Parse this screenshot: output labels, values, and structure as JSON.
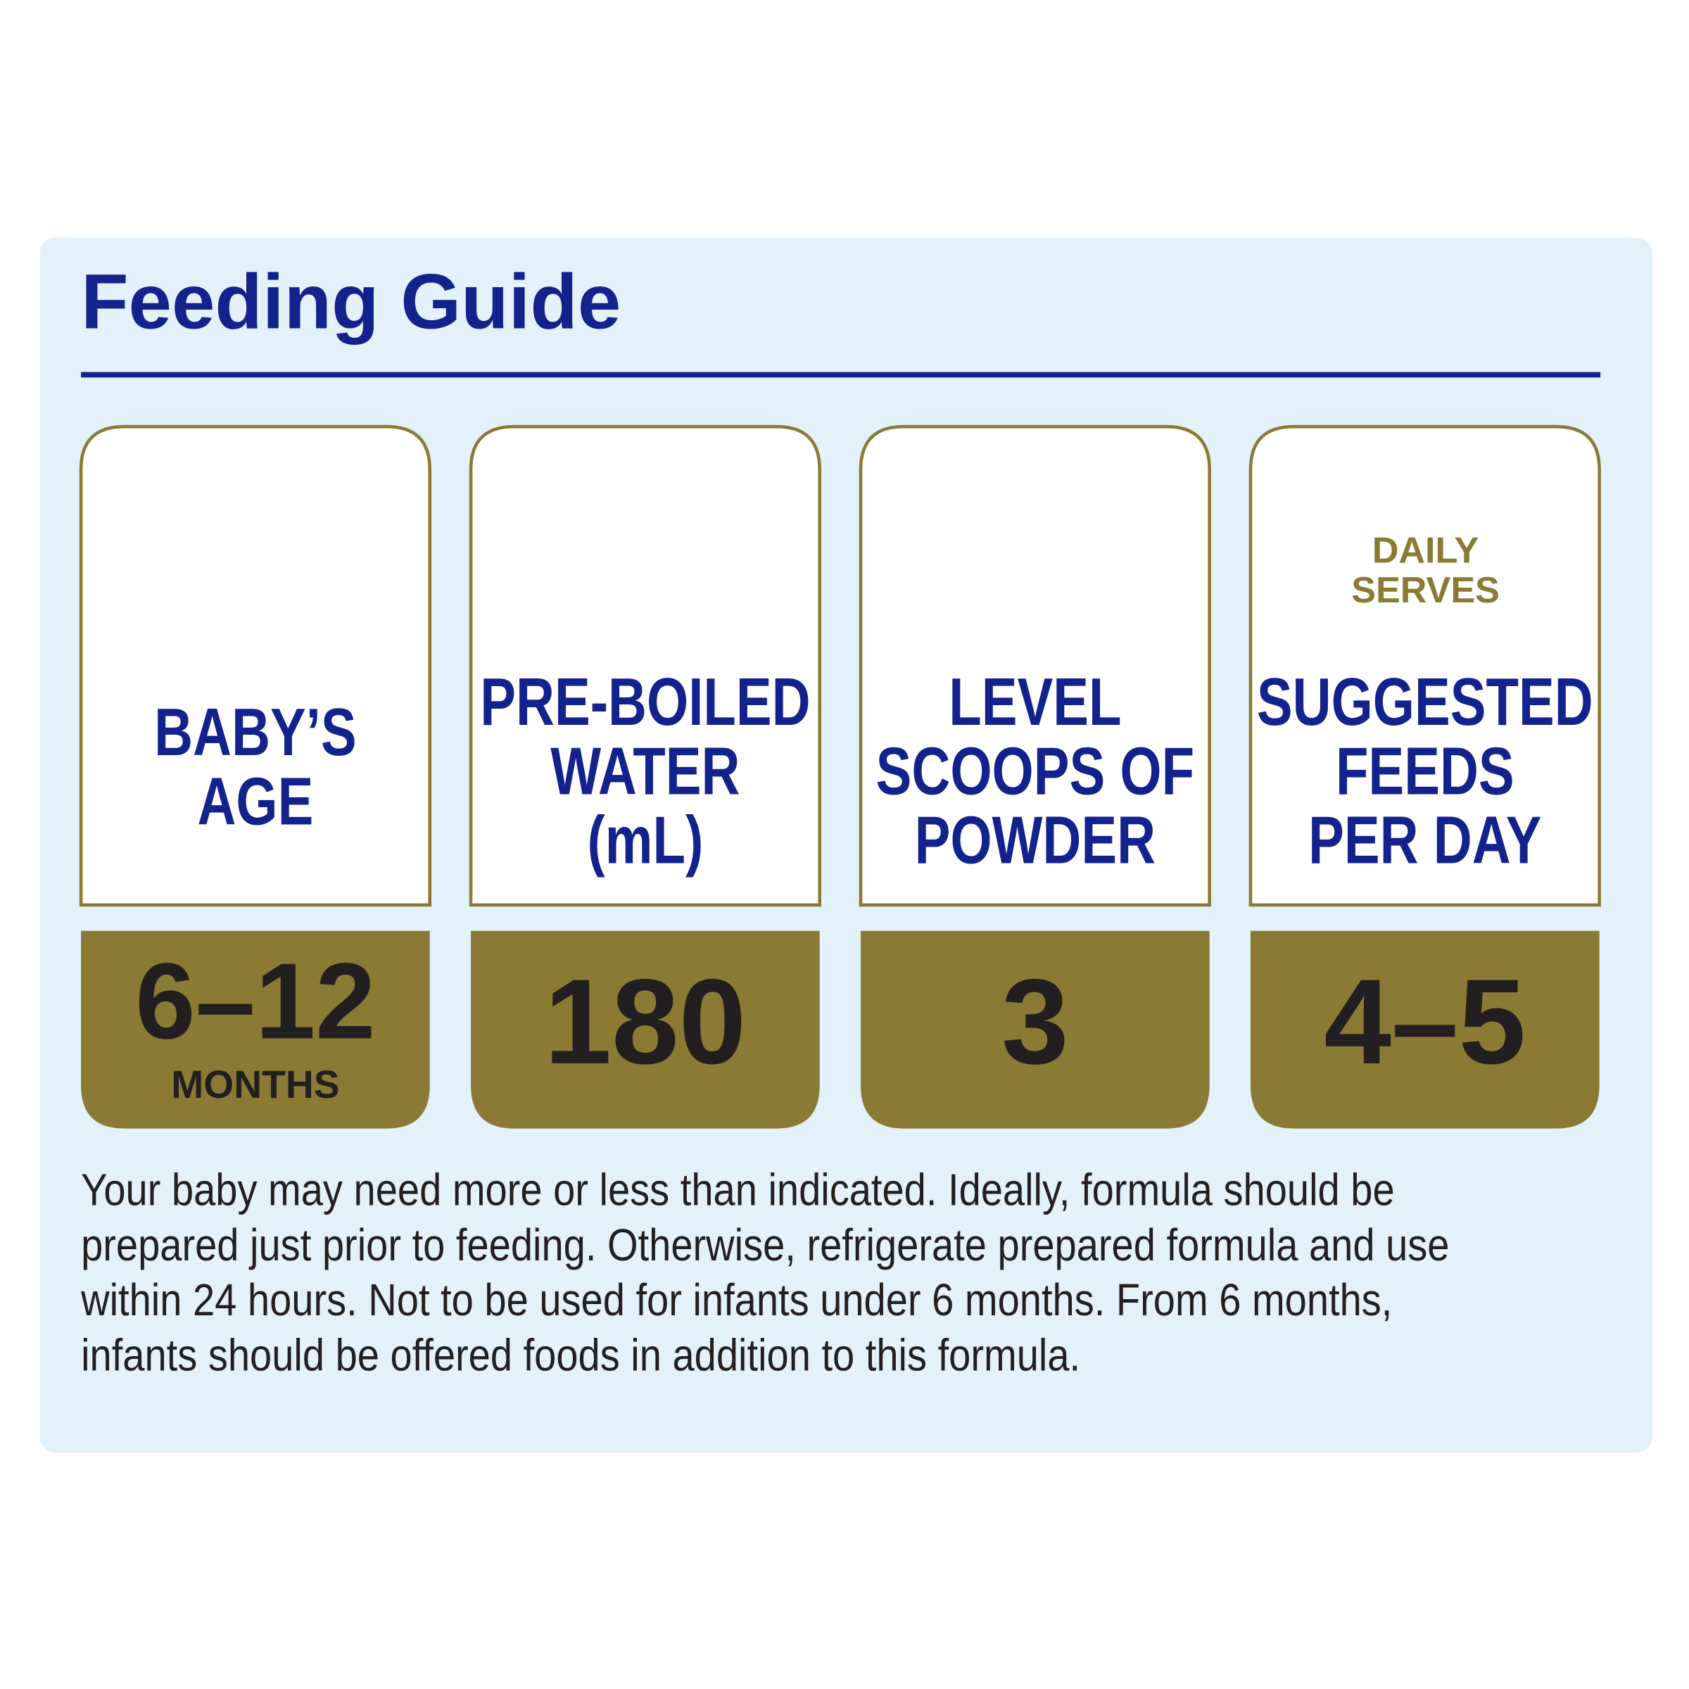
{
  "header": {
    "title": "Feeding Guide"
  },
  "columns": [
    {
      "label": [
        "BABY’S",
        "AGE"
      ],
      "value": "6–12",
      "unit": "MONTHS"
    },
    {
      "label": [
        "PRE-BOILED",
        "WATER",
        "(mL)"
      ],
      "value": "180"
    },
    {
      "label": [
        "LEVEL",
        "SCOOPS OF",
        "POWDER"
      ],
      "value": "3"
    },
    {
      "label": [
        "SUGGESTED",
        "FEEDS",
        "PER DAY"
      ],
      "value": "4–5"
    }
  ],
  "calendar_icon": {
    "text": [
      "DAILY",
      "SERVES"
    ]
  },
  "note": [
    "Your baby may need more or less than indicated. Ideally, formula should be",
    "prepared just prior to feeding. Otherwise, refrigerate prepared formula and use",
    "within 24 hours. Not to be used for infants under 6 months. From 6 months,",
    "infants should be offered foods in addition to this formula."
  ]
}
